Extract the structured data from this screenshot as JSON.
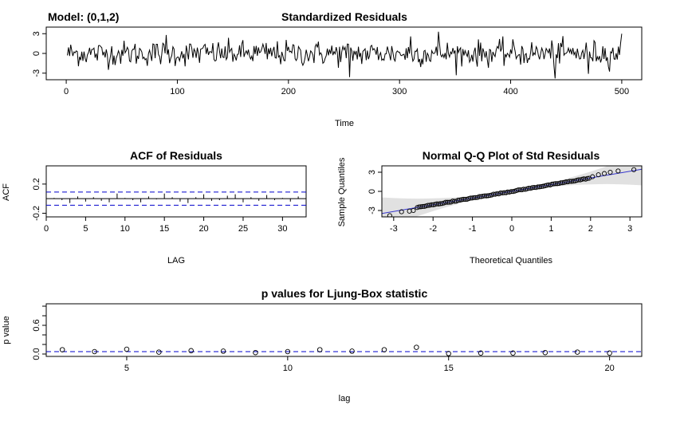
{
  "chart_data": [
    {
      "type": "line",
      "title": "Standardized Residuals",
      "model_label": "Model: (0,1,2)",
      "xlabel": "Time",
      "ylabel": "",
      "xlim": [
        0,
        500
      ],
      "ylim": [
        -4,
        4
      ],
      "xticks": [
        0,
        100,
        200,
        300,
        400,
        500
      ],
      "yticks": [
        -3,
        0,
        3
      ],
      "n": 500,
      "note": "Residual series of ~500 points with noise amplitude roughly within -3 to 3; notable extremes near t=255 (~-3.6), t=335 (~3.3), t=440 (~-3.8), t=500 (~3.0)",
      "series": [
        {
          "values_summary": "approximately standard normal noise"
        }
      ],
      "line_color": "#000000"
    },
    {
      "type": "bar",
      "title": "ACF of Residuals",
      "xlabel": "LAG",
      "ylabel": "ACF",
      "xlim": [
        0,
        33
      ],
      "ylim": [
        -0.25,
        0.45
      ],
      "xticks": [
        0,
        5,
        10,
        15,
        20,
        25,
        30
      ],
      "yticks": [
        -0.2,
        0.2
      ],
      "lags": [
        1,
        2,
        3,
        4,
        5,
        6,
        7,
        8,
        9,
        10,
        11,
        12,
        13,
        14,
        15,
        16,
        17,
        18,
        19,
        20,
        21,
        22,
        23,
        24,
        25,
        26,
        27,
        28,
        29,
        30,
        31,
        32
      ],
      "values": [
        0.01,
        -0.02,
        -0.06,
        0.03,
        -0.04,
        0.02,
        -0.03,
        -0.05,
        0.07,
        0.01,
        -0.02,
        -0.05,
        0.03,
        -0.01,
        0.07,
        0.02,
        -0.04,
        -0.06,
        0.02,
        0.06,
        -0.03,
        -0.02,
        0.04,
        0.06,
        -0.05,
        0.02,
        -0.03,
        0.05,
        -0.02,
        0.01,
        -0.04,
        0.03
      ],
      "conf_band": [
        -0.09,
        0.09
      ],
      "band_color": "#0000cc"
    },
    {
      "type": "scatter",
      "title": "Normal Q-Q Plot of Std Residuals",
      "xlabel": "Theoretical Quantiles",
      "ylabel": "Sample Quantiles",
      "xlim": [
        -3.3,
        3.3
      ],
      "ylim": [
        -4,
        4
      ],
      "xticks": [
        -3,
        -2,
        -1,
        0,
        1,
        2,
        3
      ],
      "yticks": [
        -3,
        0,
        3
      ],
      "reference_line": {
        "intercept": 0,
        "slope": 1.05
      },
      "tail_points": [
        {
          "x": -3.1,
          "y": -3.8
        },
        {
          "x": -2.8,
          "y": -3.2
        },
        {
          "x": -2.6,
          "y": -3.1
        },
        {
          "x": -2.5,
          "y": -3.0
        },
        {
          "x": 2.05,
          "y": 2.3
        },
        {
          "x": 2.2,
          "y": 2.6
        },
        {
          "x": 2.35,
          "y": 2.8
        },
        {
          "x": 2.5,
          "y": 3.0
        },
        {
          "x": 2.7,
          "y": 3.2
        },
        {
          "x": 3.1,
          "y": 3.4
        }
      ],
      "line_color": "#3333cc",
      "band_color": "#d9d9d9"
    },
    {
      "type": "scatter",
      "title": "p values for Ljung-Box statistic",
      "xlabel": "lag",
      "ylabel": "p value",
      "xlim": [
        2.5,
        21
      ],
      "ylim": [
        -0.05,
        1.05
      ],
      "xticks": [
        5,
        10,
        15,
        20
      ],
      "yticks": [
        0.0,
        0.2,
        0.4,
        0.6,
        0.8,
        1.0
      ],
      "ytick_labels": [
        "0.0",
        "",
        "",
        "0.6",
        "",
        ""
      ],
      "x": [
        3,
        4,
        5,
        6,
        7,
        8,
        9,
        10,
        11,
        12,
        13,
        14,
        15,
        16,
        17,
        18,
        19,
        20
      ],
      "values": [
        0.09,
        0.05,
        0.1,
        0.04,
        0.07,
        0.06,
        0.03,
        0.05,
        0.09,
        0.06,
        0.09,
        0.14,
        0.01,
        0.02,
        0.02,
        0.03,
        0.04,
        0.02
      ],
      "threshold": 0.05,
      "threshold_color": "#0000cc"
    }
  ]
}
